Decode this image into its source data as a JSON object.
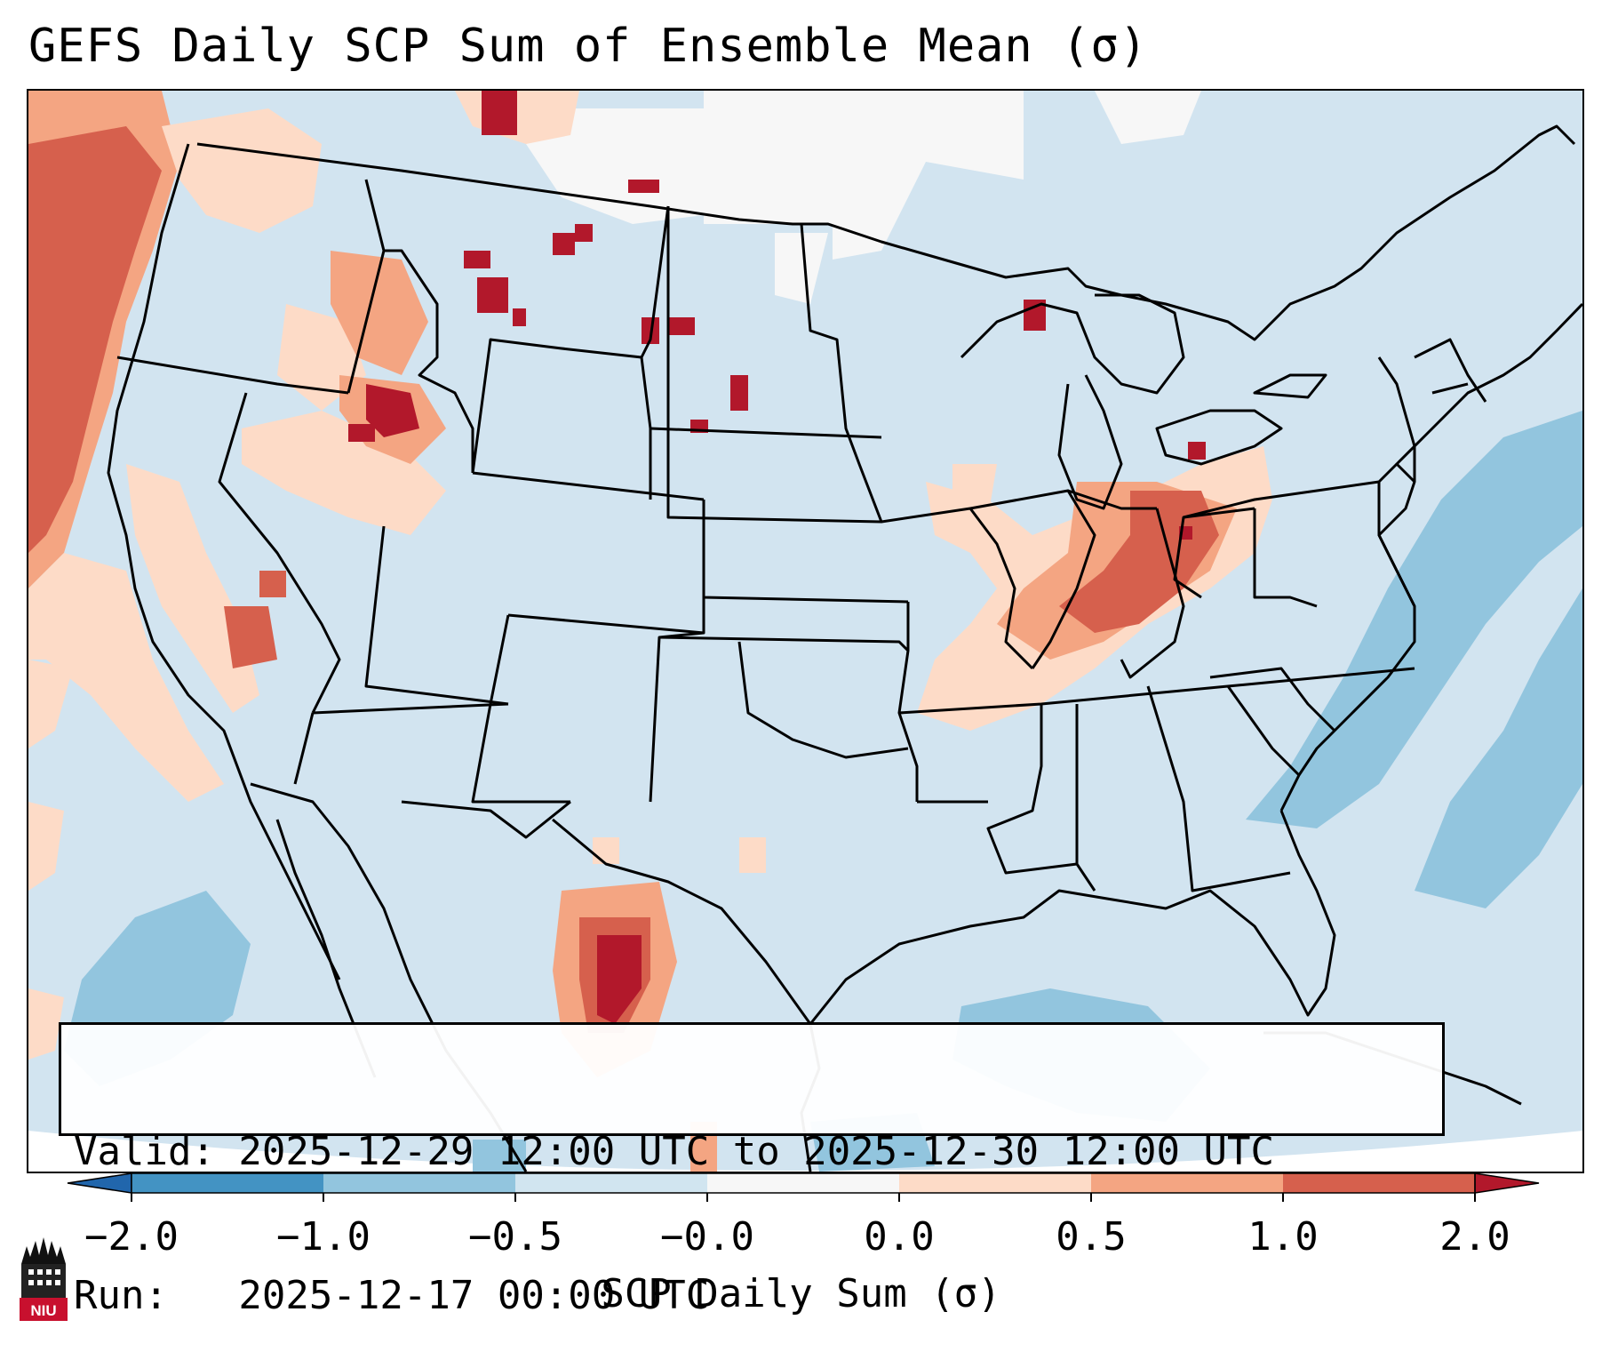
{
  "title": "GEFS Daily SCP Sum of Ensemble Mean (σ)",
  "info": {
    "valid_line": "Valid: 2025-12-29 12:00 UTC to 2025-12-30 12:00 UTC",
    "run_line": "Run:   2025-12-17 00:00 UTC"
  },
  "colorbar": {
    "label": "SCP Daily Sum (σ)",
    "ticks": [
      "−2.0",
      "−1.0",
      "−0.5",
      "−0.0",
      "0.0",
      "0.5",
      "1.0",
      "2.0"
    ],
    "bins": [
      {
        "from": "-2.0",
        "to": "-1.0",
        "color": "#4393c3"
      },
      {
        "from": "-1.0",
        "to": "-0.5",
        "color": "#92c5de"
      },
      {
        "from": "-0.5",
        "to": "-0.0",
        "color": "#d1e5f0"
      },
      {
        "from": "-0.0",
        "to": "0.0",
        "color": "#f7f7f7"
      },
      {
        "from": "0.0",
        "to": "0.5",
        "color": "#fddbc7"
      },
      {
        "from": "0.5",
        "to": "1.0",
        "color": "#f4a582"
      },
      {
        "from": "1.0",
        "to": "2.0",
        "color": "#d6604d"
      }
    ],
    "under_color": "#2166ac",
    "over_color": "#b2182b"
  },
  "field_colors": {
    "background": "#d2e4f0",
    "very_light": "#f7f7f7",
    "light_pos": "#fddbc7",
    "mid_pos": "#f4a582",
    "high_pos": "#d6604d",
    "max_pos": "#b2182b",
    "neg": "#92c5de"
  },
  "logo": {
    "text": "NIU",
    "color": "#c8102e"
  }
}
